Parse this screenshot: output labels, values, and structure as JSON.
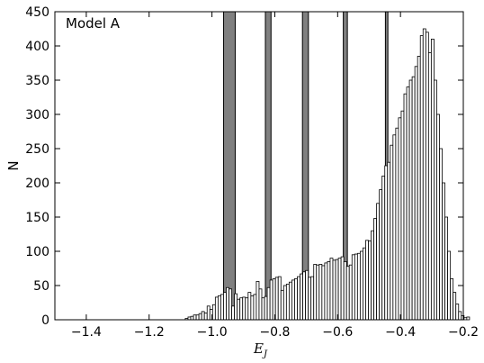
{
  "chart_data": {
    "type": "bar",
    "annotation": "Model A",
    "ylabel": "N",
    "xlabel_main": "E",
    "xlabel_sub": "J",
    "xlim": [
      -1.5,
      -0.2
    ],
    "ylim": [
      0,
      450
    ],
    "x_ticks": [
      -1.4,
      -1.2,
      -1.0,
      -0.8,
      -0.6,
      -0.4,
      -0.2
    ],
    "x_tick_labels": [
      "−1.4",
      "−1.2",
      "−1.0",
      "−0.8",
      "−0.6",
      "−0.4",
      "−0.2"
    ],
    "y_ticks": [
      0,
      50,
      100,
      150,
      200,
      250,
      300,
      350,
      400,
      450
    ],
    "y_tick_labels": [
      "0",
      "50",
      "100",
      "150",
      "200",
      "250",
      "300",
      "350",
      "400",
      "450"
    ],
    "bin_start": -1.085,
    "bin_width": 0.0087,
    "values": [
      2,
      4,
      5,
      7,
      7,
      9,
      12,
      10,
      20,
      15,
      22,
      33,
      35,
      37,
      40,
      47,
      45,
      20,
      38,
      30,
      32,
      33,
      32,
      40,
      35,
      37,
      56,
      45,
      32,
      34,
      47,
      58,
      60,
      62,
      63,
      43,
      50,
      52,
      55,
      58,
      60,
      63,
      67,
      70,
      72,
      62,
      63,
      81,
      80,
      81,
      79,
      83,
      85,
      90,
      87,
      88,
      90,
      92,
      85,
      78,
      80,
      95,
      96,
      97,
      100,
      105,
      116,
      115,
      130,
      148,
      170,
      190,
      210,
      225,
      230,
      255,
      270,
      280,
      295,
      305,
      330,
      340,
      350,
      355,
      370,
      385,
      415,
      425,
      420,
      390,
      410,
      350,
      300,
      250,
      200,
      150,
      100,
      60,
      40,
      23,
      12,
      6,
      3,
      4
    ],
    "highlight_bands": [
      {
        "from": -0.963,
        "to": -0.926
      },
      {
        "from": -0.83,
        "to": -0.812
      },
      {
        "from": -0.712,
        "to": -0.693
      },
      {
        "from": -0.582,
        "to": -0.569
      },
      {
        "from": -0.448,
        "to": -0.44
      }
    ],
    "colors": {
      "bar_fill": "#ffffff",
      "bar_edge": "#000000",
      "band_fill": "#808080",
      "band_edge": "#000000"
    }
  }
}
